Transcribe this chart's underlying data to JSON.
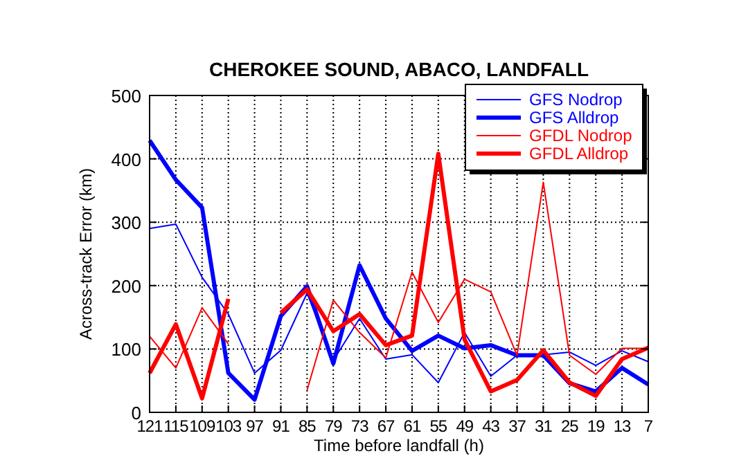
{
  "chart_data": {
    "type": "line",
    "title": "CHEROKEE SOUND, ABACO, LANDFALL",
    "xlabel": "Time before landfall (h)",
    "ylabel": "Across-track Error (km)",
    "categories": [
      "121",
      "115",
      "109",
      "103",
      "97",
      "91",
      "85",
      "79",
      "73",
      "67",
      "61",
      "55",
      "49",
      "43",
      "37",
      "31",
      "25",
      "19",
      "13",
      "7"
    ],
    "ylim": [
      0,
      500
    ],
    "yticks": [
      0,
      100,
      200,
      300,
      400,
      500
    ],
    "grid": true,
    "legend": "top right",
    "series": [
      {
        "name": "GFS Nodrop",
        "color": "#0000ff",
        "values": [
          290,
          297,
          213,
          155,
          62,
          98,
          188,
          82,
          148,
          84,
          91,
          47,
          126,
          57,
          90,
          91,
          95,
          74,
          97,
          80
        ]
      },
      {
        "name": "GFS Alldrop",
        "color": "#0000ff",
        "values": [
          429,
          367,
          323,
          62,
          20,
          152,
          199,
          77,
          232,
          148,
          97,
          121,
          101,
          106,
          90,
          90,
          46,
          33,
          70,
          44
        ]
      },
      {
        "name": "GFDL Nodrop",
        "color": "#ff0000",
        "values": [
          120,
          70,
          165,
          108,
          null,
          null,
          35,
          177,
          126,
          86,
          221,
          142,
          210,
          190,
          90,
          363,
          90,
          60,
          101,
          101
        ]
      },
      {
        "name": "GFDL Alldrop",
        "color": "#ff0000",
        "values": [
          62,
          139,
          22,
          179,
          null,
          157,
          194,
          128,
          155,
          106,
          121,
          408,
          115,
          33,
          51,
          98,
          47,
          26,
          84,
          102
        ]
      }
    ]
  }
}
